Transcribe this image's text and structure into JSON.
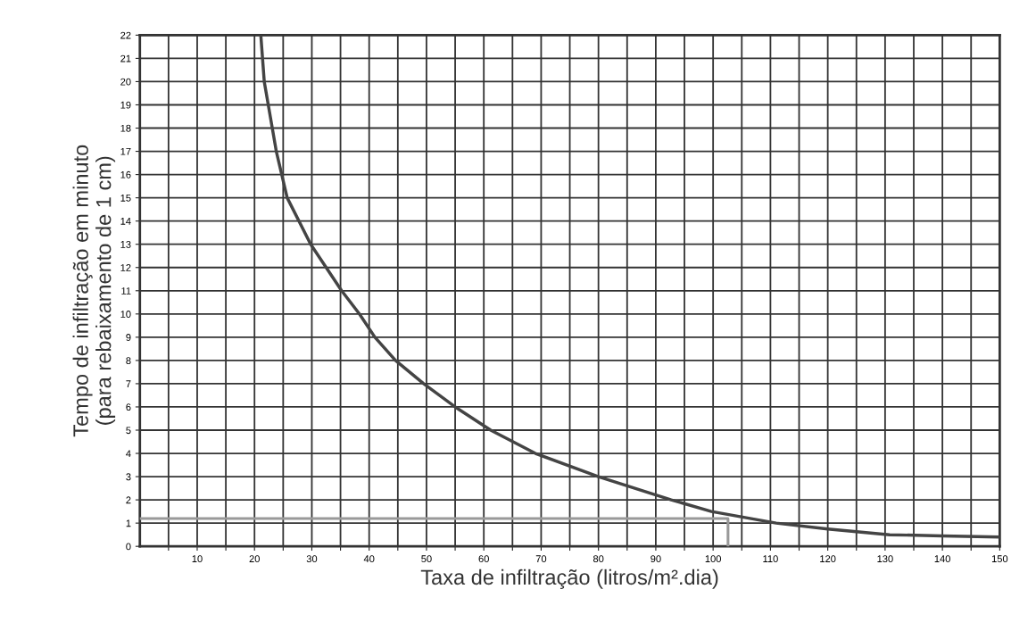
{
  "chart_data": {
    "type": "line",
    "xlabel": "Taxa de infiltração (litros/m².dia)",
    "ylabel": "Tempo de infiltração em minuto\n(para rebaixamento de 1 cm)",
    "xlim": [
      0,
      150
    ],
    "ylim": [
      0,
      22
    ],
    "xticks": [
      {
        "value": 5,
        "label": null
      },
      10,
      {
        "value": 15,
        "label": null
      },
      20,
      {
        "value": 25,
        "label": null
      },
      30,
      {
        "value": 35,
        "label": null
      },
      40,
      {
        "value": 45,
        "label": null
      },
      50,
      {
        "value": 55,
        "label": null
      },
      60,
      {
        "value": 65,
        "label": null
      },
      70,
      {
        "value": 75,
        "label": null
      },
      80,
      {
        "value": 85,
        "label": null
      },
      90,
      {
        "value": 95,
        "label": null
      },
      100,
      {
        "value": 105,
        "label": null
      },
      110,
      {
        "value": 115,
        "label": null
      },
      120,
      {
        "value": 125,
        "label": null
      },
      130,
      {
        "value": 135,
        "label": null
      },
      140,
      {
        "value": 145,
        "label": null
      },
      150
    ],
    "yticks": [
      0,
      1,
      2,
      3,
      4,
      5,
      6,
      7,
      8,
      9,
      10,
      11,
      12,
      13,
      14,
      15,
      16,
      17,
      18,
      19,
      20,
      21,
      22
    ],
    "grid": true,
    "marker": "none",
    "line_style": "solid",
    "series": [
      {
        "color": "#444444",
        "x": [
          21.1,
          21.7,
          23.8,
          25.7,
          29.8,
          35.2,
          38.3,
          41,
          44.6,
          49.5,
          55,
          61.2,
          69,
          80,
          92.7,
          99.7,
          111,
          120,
          130.8,
          140,
          150
        ],
        "values": [
          22,
          20,
          17,
          15,
          13,
          11,
          10,
          9,
          8,
          7,
          6,
          5,
          4,
          3,
          2,
          1.5,
          1,
          0.75,
          0.5,
          0.45,
          0.4
        ]
      },
      {
        "color": "#999999",
        "x": [
          0,
          102.6,
          102.6
        ],
        "values": [
          1.2,
          1.2,
          0
        ]
      }
    ]
  }
}
